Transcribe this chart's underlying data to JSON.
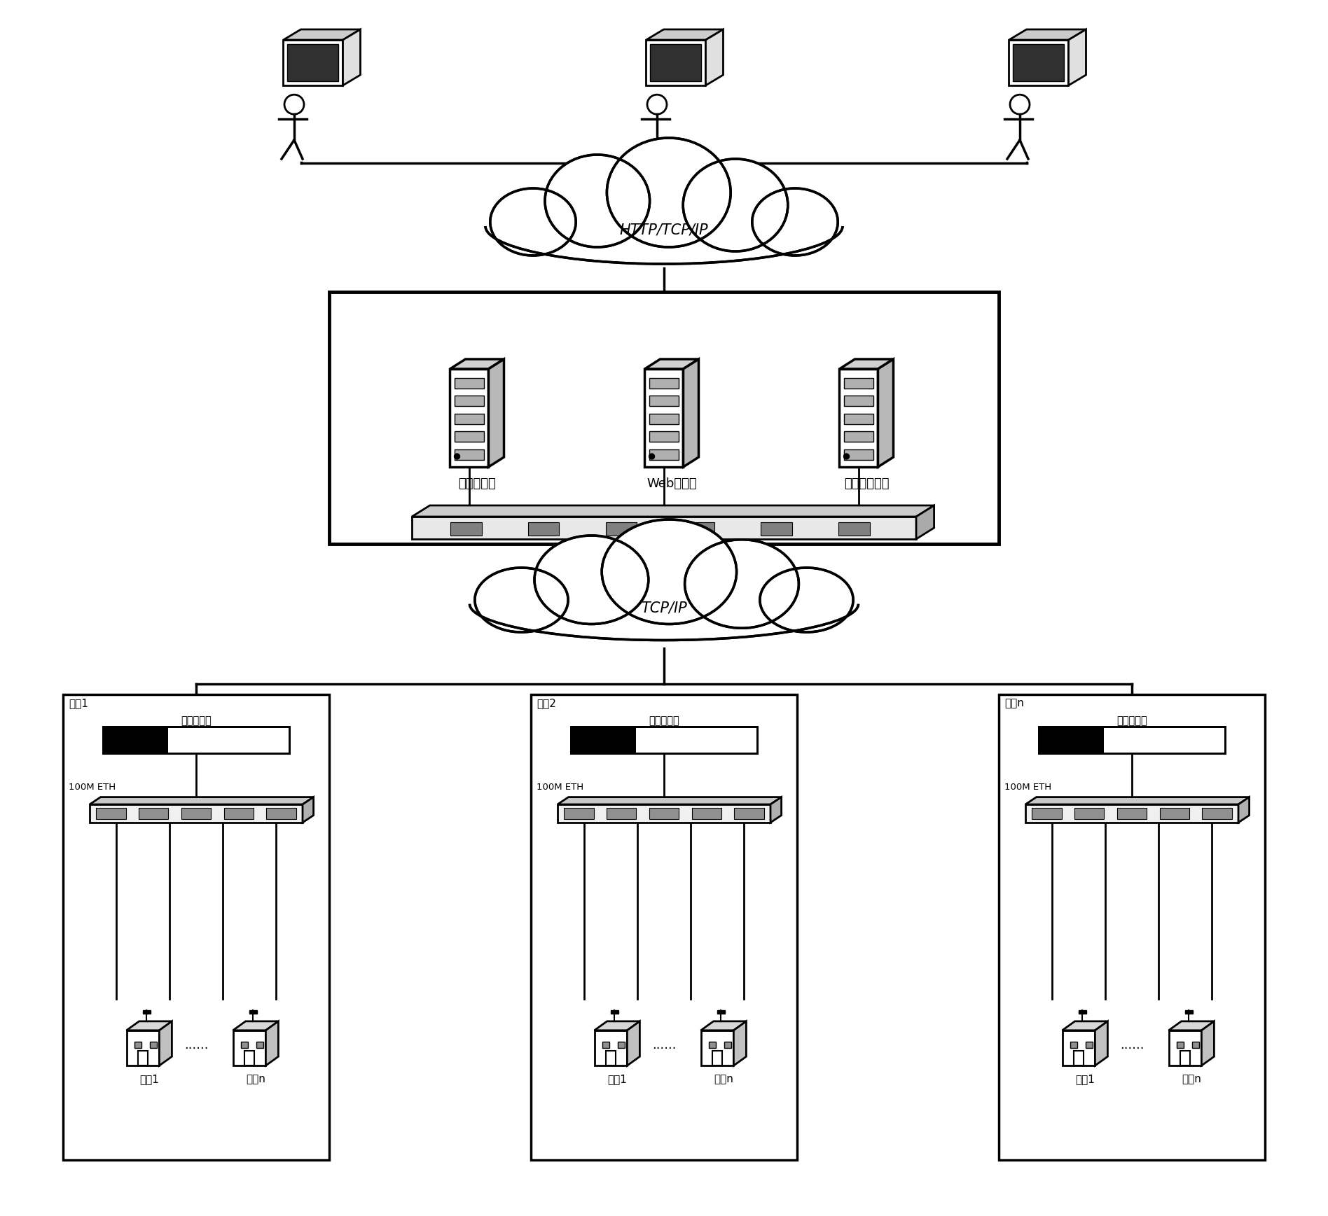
{
  "background_color": "#ffffff",
  "line_color": "#000000",
  "cloud_http_label": "HTTP/TCP/IP",
  "cloud_tcp_label": "TCP/IP",
  "server_box_labels": [
    "应用服务器",
    "Web服务器",
    "数据库服务器"
  ],
  "station_labels": [
    "站灹1",
    "站灹2",
    "站点n"
  ],
  "collector_label": "采集管理器",
  "eth_label": "100M ETH",
  "room_labels": [
    "机房1",
    "机房n"
  ],
  "dots": "......"
}
